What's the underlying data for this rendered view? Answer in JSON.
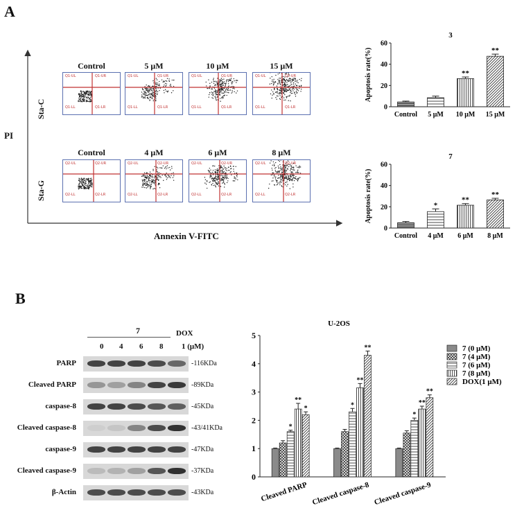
{
  "panelA": {
    "letter": "A",
    "y_axis_label": "PI",
    "x_axis_label": "Annexin V-FITC",
    "row1": {
      "label": "Sta-C",
      "conditions": [
        "Control",
        "5 μM",
        "10 μM",
        "15 μM"
      ],
      "quadrants": [
        [
          "Q1-UL",
          "Q1-UR",
          "Q1-LL",
          "Q1-LR"
        ],
        [
          "Q1-UL",
          "Q1-UR",
          "Q1-LL",
          "Q1-LR"
        ],
        [
          "Q1-UL",
          "Q1-UR",
          "Q1-LL",
          "Q1-LR"
        ],
        [
          "Q1-UL",
          "Q1-UR",
          "Q1-LL",
          "Q1-LR"
        ]
      ]
    },
    "row2": {
      "label": "Sta-G",
      "conditions": [
        "Control",
        "4 μM",
        "6 μM",
        "8 μM"
      ],
      "quadrants": [
        [
          "Q2-UL",
          "Q2-UR",
          "Q2-LL",
          "Q2-LR"
        ],
        [
          "Q2-UL",
          "Q2-UR",
          "Q2-LL",
          "Q2-LR"
        ],
        [
          "Q2-UL",
          "Q2-UR",
          "Q2-LL",
          "Q2-LR"
        ],
        [
          "Q2-UL",
          "Q2-UR",
          "Q2-LL",
          "Q2-LR"
        ]
      ]
    }
  },
  "panelB": {
    "letter": "B",
    "blot": {
      "group_label": "7",
      "dox_label": "DOX",
      "lane_labels": [
        "0",
        "4",
        "6",
        "8",
        "1 (μM)"
      ],
      "proteins": [
        {
          "name": "PARP",
          "kda": "-116KDa",
          "intensity": [
            0.8,
            0.8,
            0.8,
            0.75,
            0.6
          ]
        },
        {
          "name": "Cleaved PARP",
          "kda": "-89KDa",
          "intensity": [
            0.35,
            0.3,
            0.45,
            0.8,
            0.85
          ]
        },
        {
          "name": "caspase-8",
          "kda": "-45KDa",
          "intensity": [
            0.8,
            0.8,
            0.75,
            0.7,
            0.65
          ]
        },
        {
          "name": "Cleaved caspase-8",
          "kda": "-43/41KDa",
          "intensity": [
            0.05,
            0.1,
            0.45,
            0.75,
            0.9
          ]
        },
        {
          "name": "caspase-9",
          "kda": "-47KDa",
          "intensity": [
            0.8,
            0.8,
            0.8,
            0.8,
            0.8
          ]
        },
        {
          "name": "Cleaved caspase-9",
          "kda": "-37KDa",
          "intensity": [
            0.15,
            0.2,
            0.3,
            0.7,
            0.9
          ]
        },
        {
          "name": "β-Actin",
          "kda": "-43KDa",
          "intensity": [
            0.75,
            0.75,
            0.75,
            0.75,
            0.75
          ]
        }
      ]
    }
  },
  "chart_data": [
    {
      "type": "bar",
      "title": "3",
      "ylabel": "Apoptosis rate(%)",
      "categories": [
        "Control",
        "5 μM",
        "10 μM",
        "15 μM"
      ],
      "values": [
        4.5,
        8.5,
        26.5,
        47.5
      ],
      "errors": [
        0.8,
        1.5,
        1.5,
        2.0
      ],
      "significance": [
        "",
        "",
        "**",
        "**"
      ],
      "ylim": [
        0,
        60
      ],
      "yticks": [
        0,
        20,
        40,
        60
      ]
    },
    {
      "type": "bar",
      "title": "7",
      "ylabel": "Apoptosis rate(%)",
      "categories": [
        "Control",
        "4 μM",
        "6 μM",
        "8 μM"
      ],
      "values": [
        5.0,
        15.5,
        21.5,
        26.5
      ],
      "errors": [
        1.2,
        2.5,
        1.5,
        1.5
      ],
      "significance": [
        "",
        "*",
        "**",
        "**"
      ],
      "ylim": [
        0,
        60
      ],
      "yticks": [
        0,
        20,
        40,
        60
      ]
    },
    {
      "type": "bar",
      "title": "U-2OS",
      "categories": [
        "Cleaved PARP",
        "Cleaved caspase-8",
        "Cleaved caspase-9"
      ],
      "ylim": [
        0,
        5
      ],
      "yticks": [
        0,
        1,
        2,
        3,
        4,
        5
      ],
      "series": [
        {
          "name": "7    (0 μM)",
          "values": [
            1.0,
            1.0,
            1.0
          ],
          "errors": [
            0.02,
            0.02,
            0.02
          ],
          "significance": [
            "",
            "",
            ""
          ]
        },
        {
          "name": "7    (4 μM)",
          "values": [
            1.2,
            1.6,
            1.55
          ],
          "errors": [
            0.08,
            0.08,
            0.08
          ],
          "significance": [
            "",
            "",
            ""
          ]
        },
        {
          "name": "7    (6 μM)",
          "values": [
            1.6,
            2.3,
            2.0
          ],
          "errors": [
            0.05,
            0.12,
            0.08
          ],
          "significance": [
            "*",
            "*",
            "*"
          ]
        },
        {
          "name": "7    (8 μM)",
          "values": [
            2.4,
            3.15,
            2.4
          ],
          "errors": [
            0.2,
            0.15,
            0.1
          ],
          "significance": [
            "**",
            "**",
            "**"
          ]
        },
        {
          "name": "DOX(1 μM)",
          "values": [
            2.2,
            4.3,
            2.8
          ],
          "errors": [
            0.1,
            0.15,
            0.1
          ],
          "significance": [
            "*",
            "**",
            "**"
          ]
        }
      ]
    }
  ]
}
